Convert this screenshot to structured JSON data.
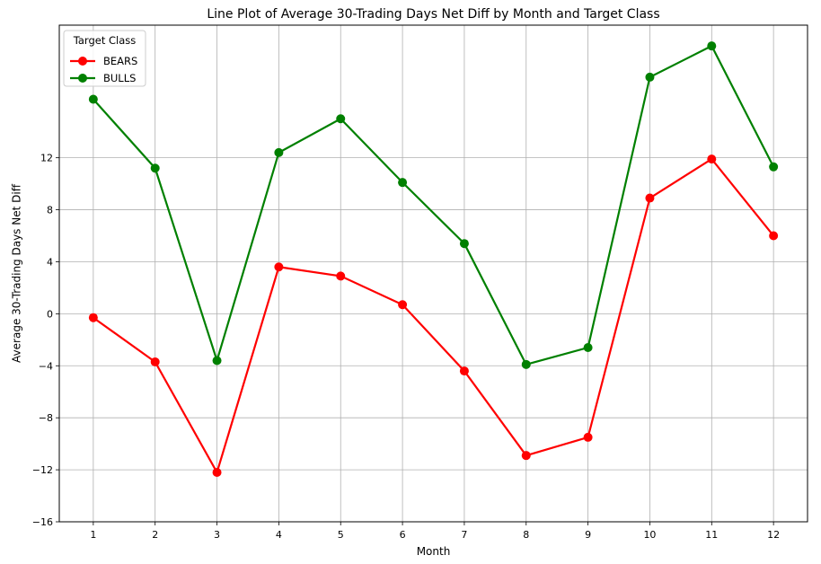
{
  "chart_data": {
    "type": "line",
    "title": "Line Plot of Average 30-Trading Days Net Diff by Month and Target Class",
    "xlabel": "Month",
    "ylabel": "Average 30-Trading Days Net Diff",
    "categories": [
      1,
      2,
      3,
      4,
      5,
      6,
      7,
      8,
      9,
      10,
      11,
      12
    ],
    "x_ticks": [
      "1",
      "2",
      "3",
      "4",
      "5",
      "6",
      "7",
      "8",
      "9",
      "10",
      "11",
      "12"
    ],
    "y_ticks": [
      -16,
      -12,
      -8,
      -4,
      0,
      4,
      8,
      12
    ],
    "y_tick_labels": [
      "−16",
      "−12",
      "−8",
      "−4",
      "0",
      "4",
      "8",
      "12"
    ],
    "xlim": [
      0.45,
      12.55
    ],
    "ylim": [
      -16,
      22.2
    ],
    "grid": true,
    "legend_title": "Target Class",
    "legend_position": "top-left",
    "series": [
      {
        "name": "BEARS",
        "color": "#ff0000",
        "values": [
          -0.3,
          -3.7,
          -12.2,
          3.6,
          2.9,
          0.7,
          -4.4,
          -10.9,
          -9.5,
          8.9,
          11.9,
          6.0
        ]
      },
      {
        "name": "BULLS",
        "color": "#008000",
        "values": [
          16.5,
          11.2,
          -3.6,
          12.4,
          15.0,
          10.1,
          5.4,
          -3.9,
          -2.6,
          18.2,
          20.6,
          11.3
        ]
      }
    ]
  }
}
